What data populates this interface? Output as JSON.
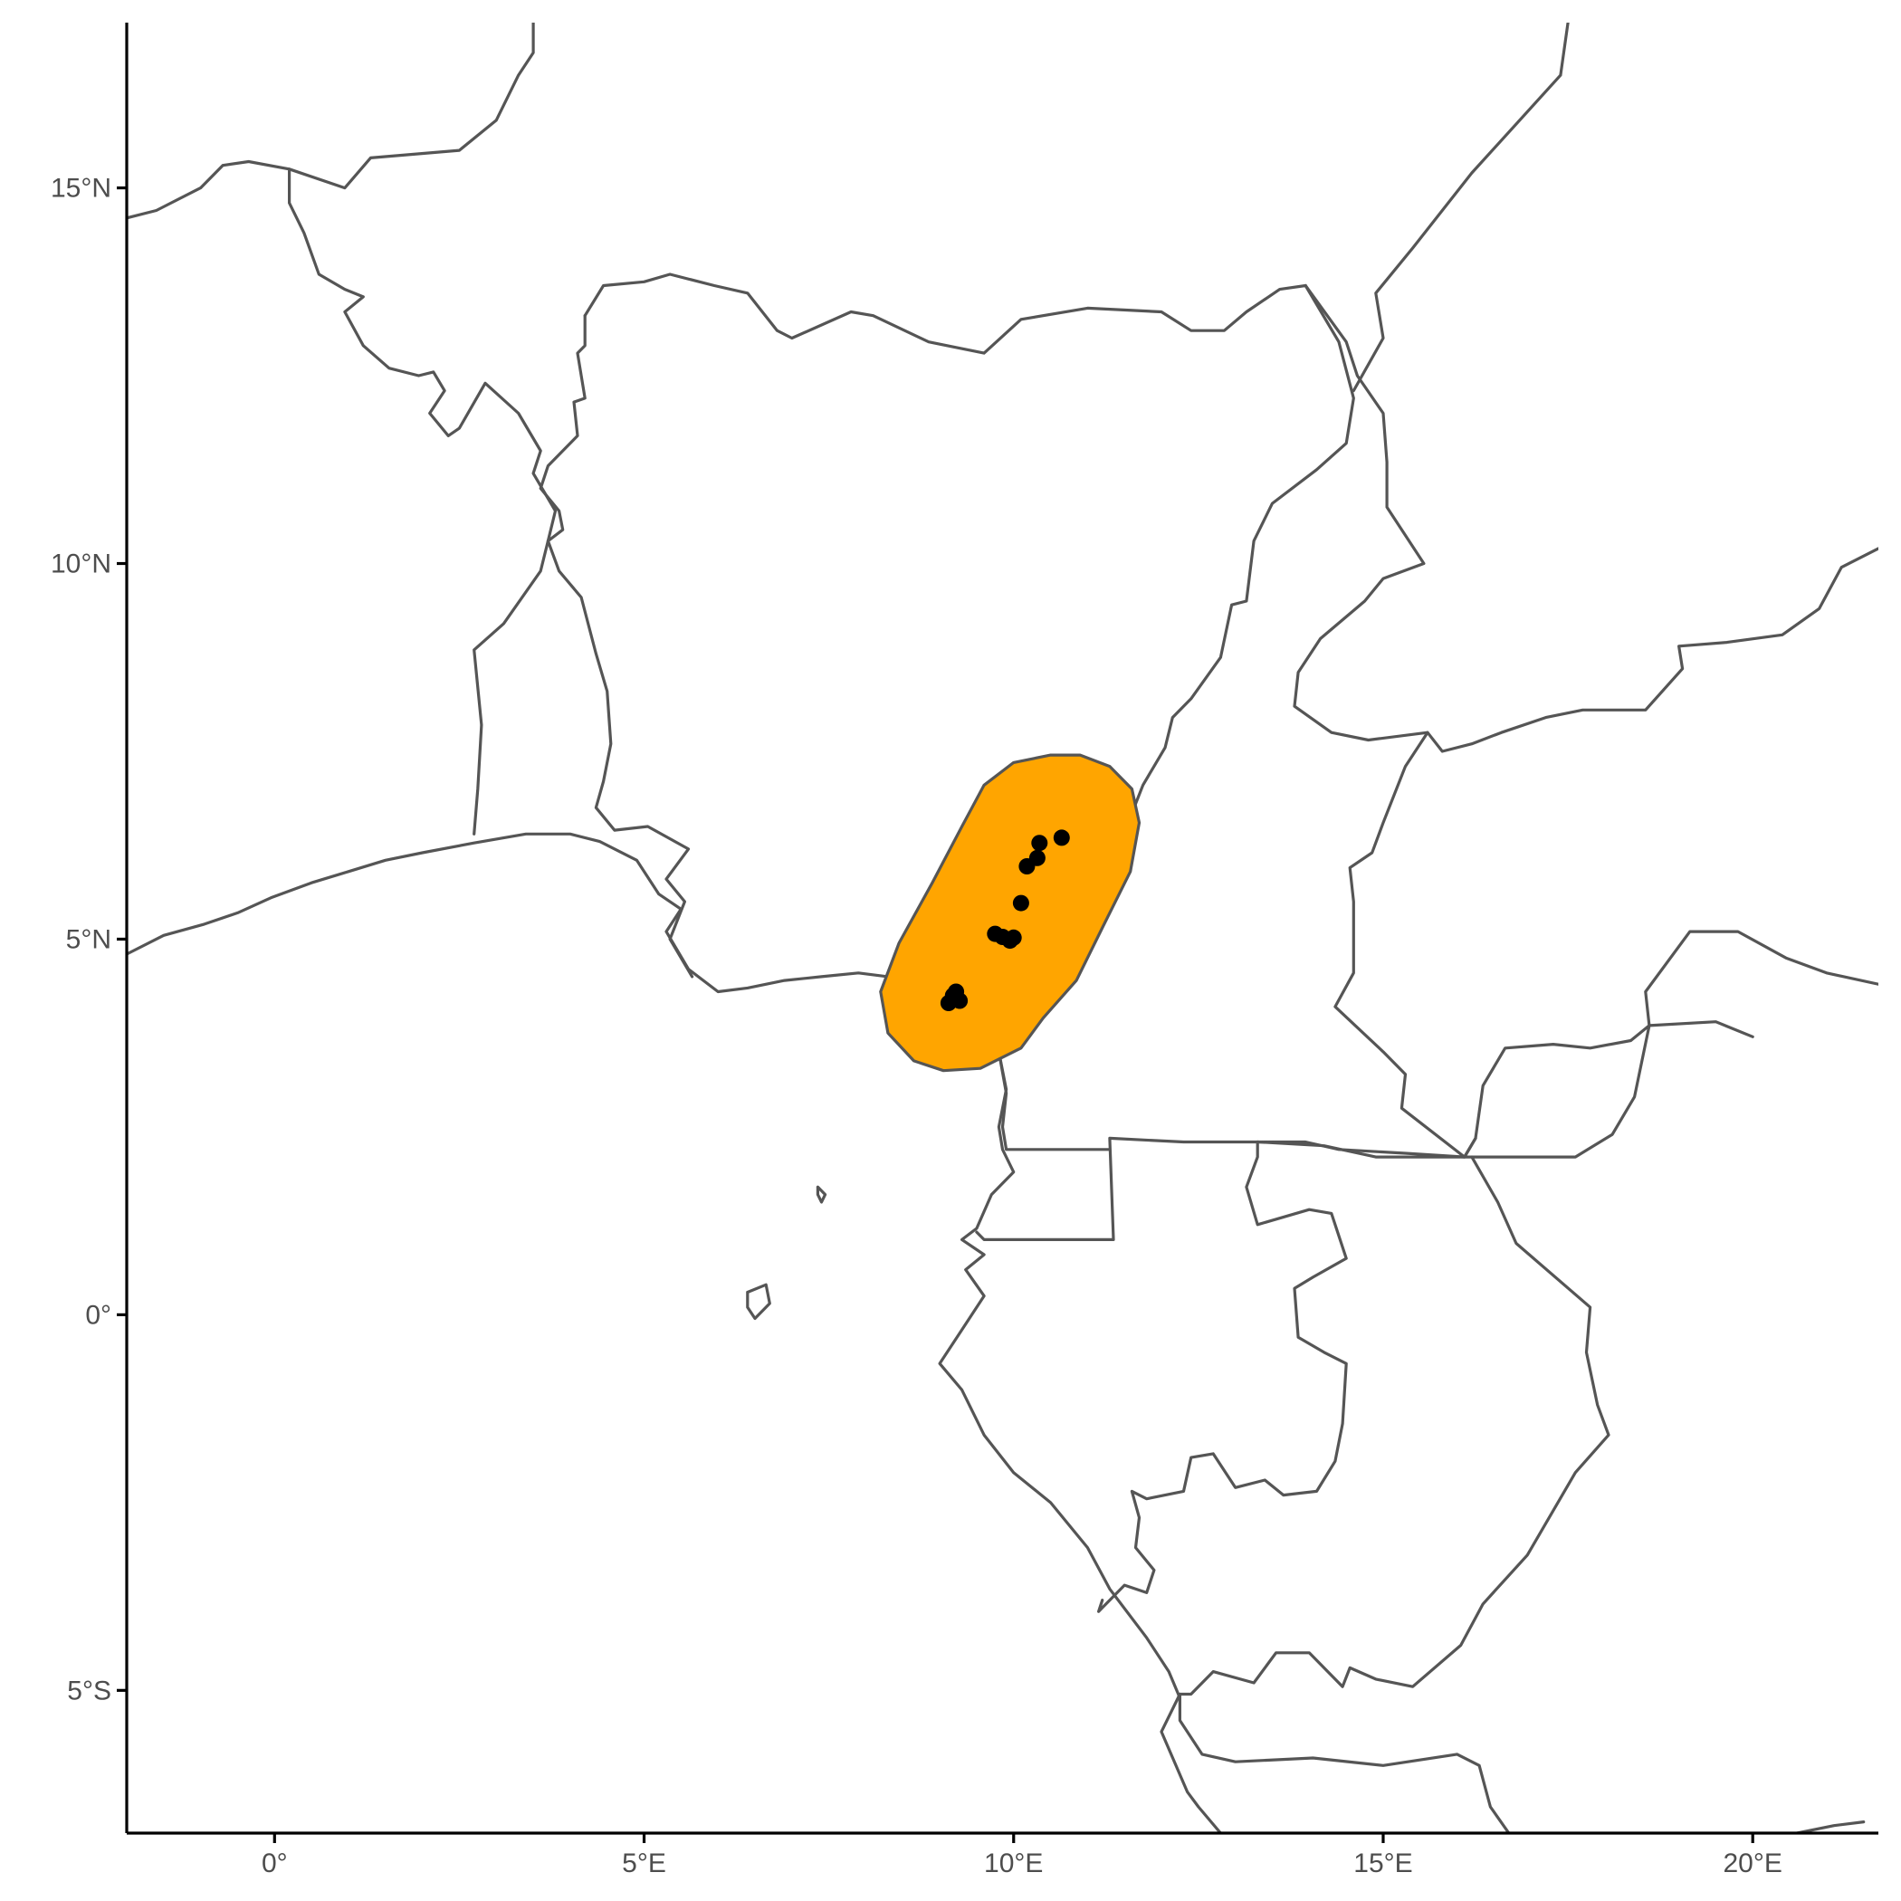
{
  "colors": {
    "border": "#555555",
    "range_fill": "#ffa500",
    "point": "#000000",
    "tick_label": "#4d4d4d",
    "background": "#ffffff"
  },
  "chart_data": {
    "type": "scatter",
    "projection": "longitude-latitude",
    "xlim": [
      -2.0,
      21.7
    ],
    "ylim": [
      -6.9,
      17.2
    ],
    "x_ticks": [
      {
        "value": 0,
        "label": "0°"
      },
      {
        "value": 5,
        "label": "5°E"
      },
      {
        "value": 10,
        "label": "10°E"
      },
      {
        "value": 15,
        "label": "15°E"
      },
      {
        "value": 20,
        "label": "20°E"
      }
    ],
    "y_ticks": [
      {
        "value": 15,
        "label": "15°N"
      },
      {
        "value": 10,
        "label": "10°N"
      },
      {
        "value": 5,
        "label": "5°N"
      },
      {
        "value": 0,
        "label": "0°"
      },
      {
        "value": -5,
        "label": "5°S"
      }
    ],
    "grid": false,
    "legend": "none",
    "occurrence_points": [
      {
        "lon": 10.65,
        "lat": 6.35
      },
      {
        "lon": 10.35,
        "lat": 6.28
      },
      {
        "lon": 10.32,
        "lat": 6.08
      },
      {
        "lon": 10.18,
        "lat": 5.97
      },
      {
        "lon": 10.1,
        "lat": 5.48
      },
      {
        "lon": 9.75,
        "lat": 5.07
      },
      {
        "lon": 9.85,
        "lat": 5.03
      },
      {
        "lon": 9.95,
        "lat": 4.98
      },
      {
        "lon": 10.0,
        "lat": 5.02
      },
      {
        "lon": 9.22,
        "lat": 4.3
      },
      {
        "lon": 9.18,
        "lat": 4.25
      },
      {
        "lon": 9.27,
        "lat": 4.18
      },
      {
        "lon": 9.12,
        "lat": 4.15
      }
    ],
    "range_polygon": [
      [
        10.5,
        7.45
      ],
      [
        10.9,
        7.45
      ],
      [
        11.3,
        7.3
      ],
      [
        11.6,
        7.0
      ],
      [
        11.7,
        6.55
      ],
      [
        11.58,
        5.9
      ],
      [
        11.2,
        5.15
      ],
      [
        10.85,
        4.45
      ],
      [
        10.4,
        3.95
      ],
      [
        10.1,
        3.55
      ],
      [
        9.55,
        3.28
      ],
      [
        9.05,
        3.25
      ],
      [
        8.65,
        3.38
      ],
      [
        8.3,
        3.75
      ],
      [
        8.2,
        4.3
      ],
      [
        8.45,
        4.95
      ],
      [
        8.9,
        5.75
      ],
      [
        9.3,
        6.5
      ],
      [
        9.6,
        7.05
      ],
      [
        10.0,
        7.35
      ]
    ],
    "borders": [
      [
        [
          -2.0,
          14.6
        ],
        [
          -1.6,
          14.7
        ],
        [
          -1.0,
          15.0
        ],
        [
          -0.7,
          15.3
        ],
        [
          -0.35,
          15.35
        ],
        [
          0.2,
          15.25
        ],
        [
          0.2,
          14.8
        ],
        [
          0.4,
          14.4
        ],
        [
          0.6,
          13.85
        ],
        [
          0.95,
          13.65
        ],
        [
          1.2,
          13.55
        ],
        [
          0.95,
          13.35
        ],
        [
          1.2,
          12.9
        ],
        [
          1.55,
          12.6
        ],
        [
          1.95,
          12.5
        ],
        [
          2.15,
          12.55
        ],
        [
          2.3,
          12.3
        ],
        [
          2.1,
          12.0
        ],
        [
          2.35,
          11.7
        ],
        [
          2.5,
          11.8
        ],
        [
          2.85,
          12.4
        ],
        [
          3.3,
          12.0
        ],
        [
          3.6,
          11.5
        ],
        [
          3.5,
          11.2
        ],
        [
          3.8,
          10.7
        ],
        [
          3.7,
          10.3
        ],
        [
          3.6,
          9.9
        ],
        [
          3.1,
          9.2
        ],
        [
          2.7,
          8.85
        ],
        [
          2.8,
          7.85
        ],
        [
          2.75,
          7.0
        ],
        [
          2.7,
          6.4
        ]
      ],
      [
        [
          4.2,
          13.3
        ],
        [
          4.2,
          12.9
        ],
        [
          4.1,
          12.8
        ],
        [
          4.2,
          12.2
        ],
        [
          4.05,
          12.15
        ],
        [
          4.1,
          11.7
        ],
        [
          3.7,
          11.3
        ],
        [
          3.6,
          11.0
        ],
        [
          3.85,
          10.7
        ],
        [
          3.9,
          10.45
        ],
        [
          3.7,
          10.3
        ],
        [
          3.85,
          9.9
        ],
        [
          4.15,
          9.55
        ],
        [
          4.35,
          8.8
        ],
        [
          4.5,
          8.3
        ],
        [
          4.55,
          7.6
        ],
        [
          4.45,
          7.1
        ],
        [
          4.35,
          6.75
        ],
        [
          4.6,
          6.45
        ],
        [
          5.05,
          6.5
        ],
        [
          5.6,
          6.2
        ],
        [
          5.3,
          5.8
        ],
        [
          5.55,
          5.5
        ],
        [
          5.35,
          5.0
        ],
        [
          5.65,
          4.5
        ]
      ],
      [
        [
          4.2,
          13.3
        ],
        [
          4.45,
          13.7
        ],
        [
          5.0,
          13.75
        ],
        [
          5.35,
          13.85
        ],
        [
          5.95,
          13.7
        ],
        [
          6.4,
          13.6
        ],
        [
          6.8,
          13.1
        ],
        [
          7.0,
          13.0
        ],
        [
          7.8,
          13.35
        ],
        [
          8.1,
          13.3
        ],
        [
          8.85,
          12.95
        ],
        [
          9.6,
          12.8
        ],
        [
          10.1,
          13.25
        ],
        [
          11.0,
          13.4
        ],
        [
          12.0,
          13.35
        ],
        [
          12.4,
          13.1
        ],
        [
          12.85,
          13.1
        ],
        [
          13.15,
          13.35
        ],
        [
          13.6,
          13.65
        ],
        [
          13.95,
          13.7
        ]
      ],
      [
        [
          13.95,
          13.7
        ],
        [
          14.4,
          12.95
        ],
        [
          14.6,
          12.2
        ],
        [
          14.5,
          11.6
        ],
        [
          14.1,
          11.25
        ],
        [
          13.5,
          10.8
        ],
        [
          13.25,
          10.3
        ],
        [
          13.15,
          9.5
        ],
        [
          12.95,
          9.45
        ],
        [
          12.8,
          8.75
        ],
        [
          12.4,
          8.2
        ],
        [
          12.15,
          7.95
        ],
        [
          12.05,
          7.55
        ],
        [
          11.75,
          7.05
        ],
        [
          11.55,
          6.55
        ],
        [
          11.05,
          6.45
        ],
        [
          10.6,
          6.98
        ],
        [
          10.25,
          6.9
        ],
        [
          9.8,
          6.55
        ],
        [
          9.5,
          6.35
        ],
        [
          9.35,
          5.95
        ],
        [
          8.95,
          5.0
        ],
        [
          8.6,
          4.8
        ],
        [
          8.4,
          4.3
        ]
      ],
      [
        [
          13.95,
          13.7
        ],
        [
          14.5,
          12.95
        ],
        [
          14.65,
          12.5
        ],
        [
          15.0,
          12.0
        ],
        [
          15.05,
          11.35
        ],
        [
          15.05,
          10.75
        ],
        [
          15.55,
          10.0
        ],
        [
          15.0,
          9.8
        ],
        [
          14.75,
          9.5
        ],
        [
          14.15,
          9.0
        ],
        [
          13.85,
          8.55
        ],
        [
          13.8,
          8.1
        ],
        [
          14.3,
          7.75
        ],
        [
          14.8,
          7.65
        ],
        [
          15.6,
          7.75
        ],
        [
          15.8,
          7.5
        ],
        [
          16.2,
          7.6
        ],
        [
          16.6,
          7.75
        ],
        [
          17.2,
          7.95
        ],
        [
          17.7,
          8.05
        ],
        [
          18.55,
          8.05
        ],
        [
          19.05,
          8.6
        ],
        [
          19.0,
          8.9
        ],
        [
          19.65,
          8.95
        ],
        [
          20.4,
          9.05
        ],
        [
          20.9,
          9.4
        ],
        [
          21.2,
          9.95
        ],
        [
          21.7,
          10.2
        ]
      ],
      [
        [
          15.6,
          7.75
        ],
        [
          15.3,
          7.3
        ],
        [
          15.0,
          6.55
        ],
        [
          14.85,
          6.15
        ],
        [
          14.55,
          5.95
        ],
        [
          14.6,
          5.5
        ],
        [
          14.6,
          5.1
        ],
        [
          14.6,
          4.55
        ],
        [
          14.35,
          4.1
        ],
        [
          15.0,
          3.5
        ],
        [
          15.3,
          3.2
        ],
        [
          15.25,
          2.75
        ],
        [
          16.1,
          2.1
        ],
        [
          16.25,
          2.35
        ],
        [
          16.35,
          3.05
        ],
        [
          16.65,
          3.55
        ],
        [
          17.3,
          3.6
        ],
        [
          17.8,
          3.55
        ],
        [
          18.35,
          3.65
        ],
        [
          18.6,
          3.85
        ],
        [
          19.5,
          3.9
        ],
        [
          20.0,
          3.7
        ]
      ],
      [
        [
          18.6,
          3.85
        ],
        [
          18.55,
          4.3
        ],
        [
          19.15,
          5.1
        ],
        [
          19.8,
          5.1
        ],
        [
          20.45,
          4.75
        ],
        [
          21.0,
          4.55
        ],
        [
          21.7,
          4.4
        ]
      ],
      [
        [
          16.25,
          2.35
        ],
        [
          16.1,
          2.1
        ],
        [
          15.3,
          2.15
        ],
        [
          14.4,
          2.2
        ],
        [
          13.95,
          2.3
        ],
        [
          13.3,
          2.3
        ],
        [
          12.3,
          2.3
        ],
        [
          11.3,
          2.35
        ],
        [
          11.35,
          1.0
        ],
        [
          9.7,
          1.0
        ],
        [
          9.6,
          1.0
        ],
        [
          9.5,
          1.1
        ]
      ],
      [
        [
          11.3,
          2.2
        ],
        [
          9.9,
          2.2
        ],
        [
          9.85,
          2.5
        ],
        [
          9.9,
          2.95
        ],
        [
          9.8,
          3.5
        ]
      ],
      [
        [
          13.3,
          2.3
        ],
        [
          13.3,
          2.1
        ],
        [
          13.15,
          1.7
        ],
        [
          13.3,
          1.2
        ],
        [
          14.0,
          1.4
        ],
        [
          14.3,
          1.35
        ],
        [
          14.5,
          0.75
        ],
        [
          14.05,
          0.5
        ],
        [
          13.8,
          0.35
        ],
        [
          13.85,
          -0.3
        ],
        [
          14.2,
          -0.5
        ],
        [
          14.5,
          -0.65
        ],
        [
          14.45,
          -1.45
        ],
        [
          14.35,
          -1.95
        ],
        [
          14.1,
          -2.35
        ],
        [
          13.65,
          -2.4
        ],
        [
          13.4,
          -2.2
        ],
        [
          13.0,
          -2.3
        ],
        [
          12.7,
          -1.85
        ],
        [
          12.4,
          -1.9
        ],
        [
          12.3,
          -2.35
        ],
        [
          11.8,
          -2.45
        ],
        [
          11.6,
          -2.35
        ],
        [
          11.7,
          -2.7
        ],
        [
          11.65,
          -3.1
        ],
        [
          11.9,
          -3.4
        ],
        [
          11.8,
          -3.7
        ],
        [
          11.5,
          -3.6
        ],
        [
          11.15,
          -3.95
        ],
        [
          11.2,
          -3.8
        ]
      ],
      [
        [
          13.3,
          2.3
        ],
        [
          14.2,
          2.25
        ],
        [
          14.9,
          2.1
        ],
        [
          16.2,
          2.1
        ],
        [
          17.6,
          2.1
        ],
        [
          18.1,
          2.4
        ],
        [
          18.4,
          2.9
        ],
        [
          18.6,
          3.85
        ]
      ],
      [
        [
          16.2,
          2.1
        ],
        [
          16.55,
          1.5
        ],
        [
          16.8,
          0.95
        ],
        [
          17.8,
          0.1
        ],
        [
          17.75,
          -0.5
        ],
        [
          17.9,
          -1.2
        ],
        [
          18.05,
          -1.6
        ],
        [
          17.6,
          -2.1
        ],
        [
          16.95,
          -3.2
        ],
        [
          16.35,
          -3.85
        ],
        [
          16.05,
          -4.4
        ],
        [
          15.4,
          -4.95
        ],
        [
          14.9,
          -4.85
        ],
        [
          14.55,
          -4.7
        ],
        [
          14.45,
          -4.95
        ],
        [
          14.0,
          -4.5
        ],
        [
          13.55,
          -4.5
        ],
        [
          13.25,
          -4.9
        ],
        [
          12.7,
          -4.75
        ],
        [
          12.4,
          -5.05
        ],
        [
          12.25,
          -5.05
        ]
      ],
      [
        [
          12.25,
          -5.05
        ],
        [
          12.25,
          -5.4
        ],
        [
          12.55,
          -5.85
        ],
        [
          13.0,
          -5.95
        ],
        [
          14.05,
          -5.9
        ],
        [
          15.0,
          -6.0
        ],
        [
          16.0,
          -5.85
        ],
        [
          16.3,
          -6.0
        ],
        [
          16.45,
          -6.55
        ],
        [
          16.7,
          -6.9
        ]
      ],
      [
        [
          12.25,
          -5.05
        ],
        [
          12.0,
          -5.55
        ],
        [
          12.35,
          -6.35
        ],
        [
          12.5,
          -6.55
        ],
        [
          12.8,
          -6.9
        ]
      ],
      [
        [
          20.6,
          -6.9
        ],
        [
          21.1,
          -6.8
        ],
        [
          21.5,
          -6.75
        ]
      ],
      [
        [
          -2.0,
          4.8
        ],
        [
          -1.5,
          5.05
        ],
        [
          -0.95,
          5.2
        ],
        [
          -0.5,
          5.35
        ],
        [
          -0.05,
          5.55
        ],
        [
          0.5,
          5.75
        ],
        [
          1.0,
          5.9
        ],
        [
          1.5,
          6.05
        ],
        [
          2.0,
          6.15
        ],
        [
          2.7,
          6.28
        ],
        [
          3.4,
          6.4
        ],
        [
          4.0,
          6.4
        ],
        [
          4.4,
          6.3
        ],
        [
          4.9,
          6.05
        ],
        [
          5.2,
          5.6
        ],
        [
          5.5,
          5.4
        ],
        [
          5.3,
          5.1
        ],
        [
          5.6,
          4.6
        ],
        [
          6.0,
          4.3
        ],
        [
          6.4,
          4.35
        ],
        [
          6.9,
          4.45
        ],
        [
          7.4,
          4.5
        ],
        [
          7.9,
          4.55
        ],
        [
          8.3,
          4.5
        ]
      ],
      [
        [
          9.5,
          3.65
        ],
        [
          9.8,
          3.5
        ],
        [
          9.9,
          3.0
        ],
        [
          9.8,
          2.5
        ],
        [
          9.85,
          2.2
        ],
        [
          10.0,
          1.9
        ],
        [
          9.7,
          1.6
        ],
        [
          9.5,
          1.15
        ],
        [
          9.3,
          1.0
        ],
        [
          9.6,
          0.8
        ],
        [
          9.35,
          0.6
        ],
        [
          9.6,
          0.25
        ],
        [
          9.3,
          -0.2
        ],
        [
          9.0,
          -0.65
        ],
        [
          9.3,
          -1.0
        ],
        [
          9.6,
          -1.6
        ],
        [
          10.0,
          -2.1
        ],
        [
          10.5,
          -2.5
        ],
        [
          11.0,
          -3.1
        ],
        [
          11.3,
          -3.65
        ],
        [
          11.8,
          -4.3
        ],
        [
          12.1,
          -4.75
        ],
        [
          12.25,
          -5.1
        ]
      ],
      [
        [
          6.4,
          0.3
        ],
        [
          6.65,
          0.4
        ],
        [
          6.7,
          0.15
        ],
        [
          6.5,
          -0.05
        ],
        [
          6.4,
          0.1
        ],
        [
          6.4,
          0.3
        ]
      ],
      [
        [
          7.35,
          1.7
        ],
        [
          7.45,
          1.6
        ],
        [
          7.4,
          1.5
        ],
        [
          7.35,
          1.6
        ],
        [
          7.35,
          1.7
        ]
      ],
      [
        [
          3.5,
          17.2
        ],
        [
          3.5,
          16.8
        ],
        [
          3.3,
          16.5
        ],
        [
          3.0,
          15.9
        ],
        [
          2.5,
          15.5
        ],
        [
          1.3,
          15.4
        ],
        [
          0.95,
          15.0
        ],
        [
          0.2,
          15.25
        ]
      ],
      [
        [
          17.5,
          17.2
        ],
        [
          17.4,
          16.5
        ],
        [
          16.2,
          15.2
        ],
        [
          15.4,
          14.2
        ],
        [
          14.9,
          13.6
        ],
        [
          15.0,
          13.0
        ],
        [
          14.6,
          12.3
        ]
      ]
    ]
  }
}
